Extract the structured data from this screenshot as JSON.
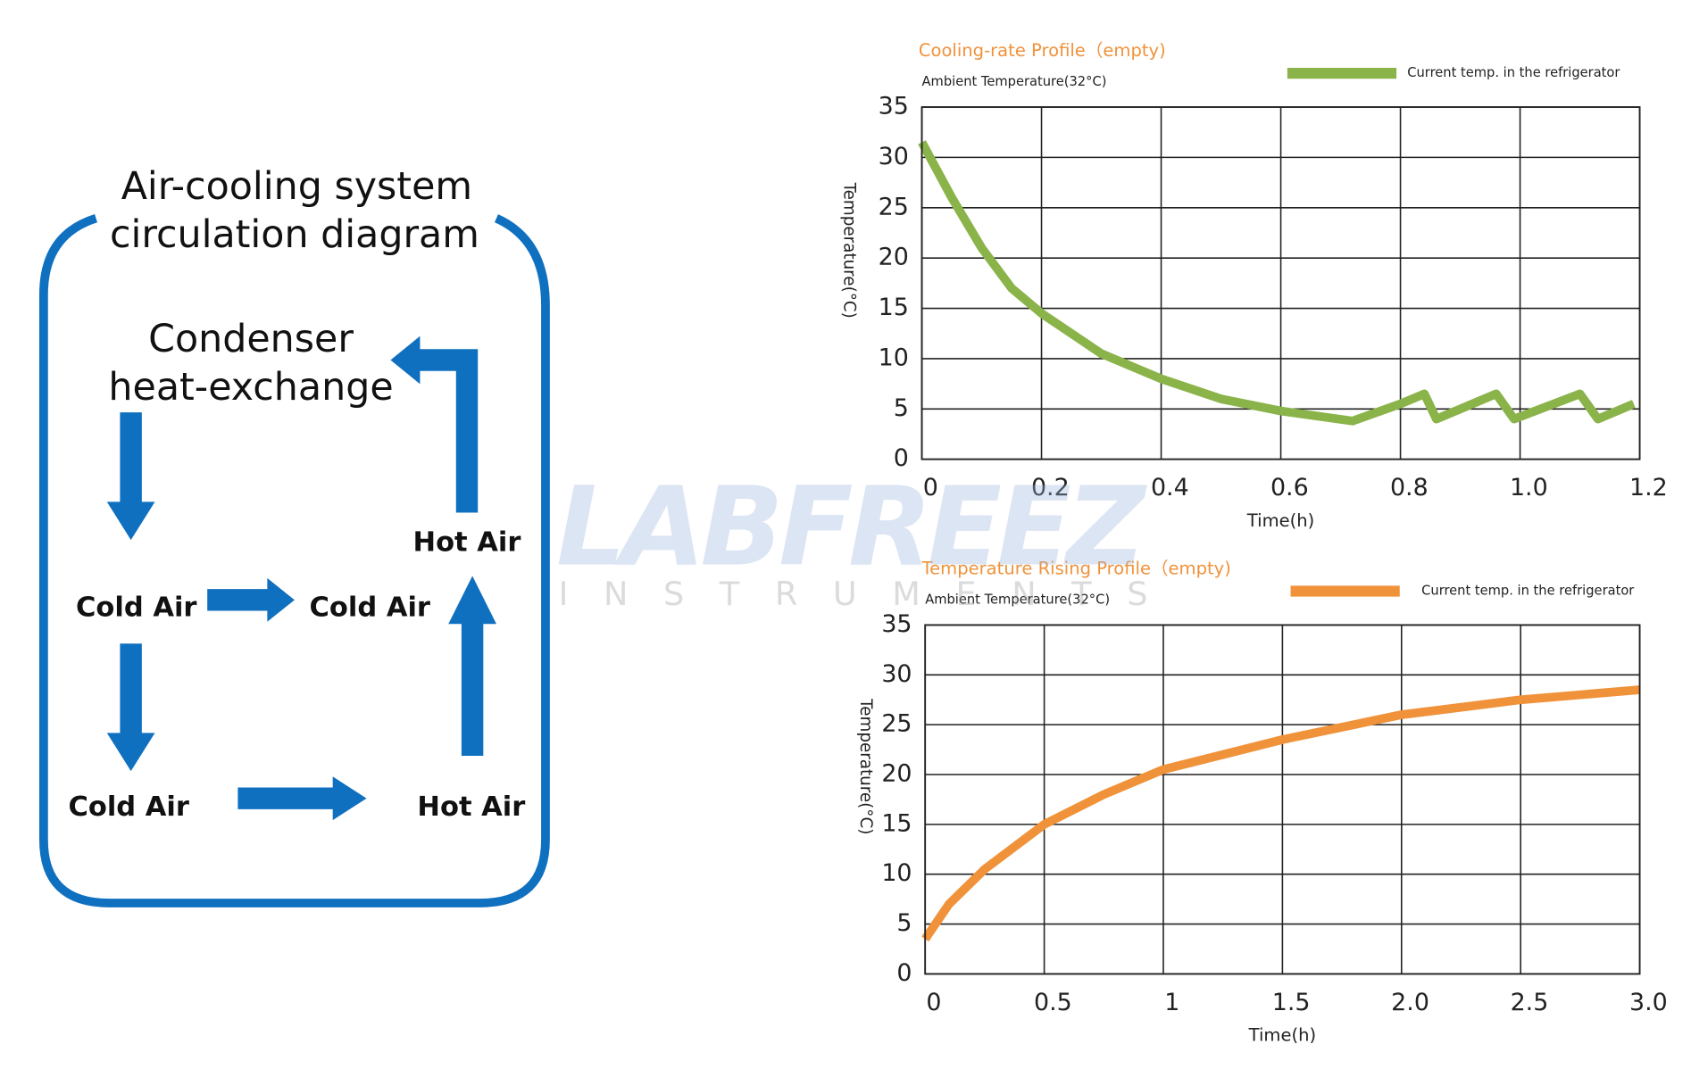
{
  "diagram": {
    "title": [
      "Air-cooling  system",
      "circulation diagram"
    ],
    "condenser": [
      "Condenser",
      "heat-exchange"
    ],
    "labels": [
      "Hot Air",
      "Cold Air",
      "Cold Air",
      "Cold Air",
      "Hot Air"
    ]
  },
  "watermark": {
    "brand": "LABFREEZ",
    "sub": "INSTRUMENTS"
  },
  "chart_data": [
    {
      "type": "line",
      "title": "Cooling-rate Profile（empty)",
      "subtitle": "Ambient Temperature(32°C)",
      "x_label": "Time(h)",
      "y_label": "Temperature(°C)",
      "grid": true,
      "x": [
        0,
        0.05,
        0.1,
        0.15,
        0.2,
        0.3,
        0.4,
        0.5,
        0.6,
        0.72,
        0.8,
        0.84,
        0.86,
        0.96,
        0.99,
        1.1,
        1.13,
        1.19
      ],
      "series": [
        {
          "name": "Current temp. in the refrigerator",
          "color": "#8ab34a",
          "values": [
            31.5,
            26,
            21,
            17,
            14.5,
            10.5,
            8,
            6,
            4.8,
            3.8,
            5.5,
            6.5,
            4,
            6.5,
            4,
            6.5,
            4,
            5.5
          ]
        }
      ],
      "xlim": [
        0,
        1.2
      ],
      "xticks": [
        0,
        0.2,
        0.4,
        0.6,
        0.8,
        {
          "value": 1,
          "label": "1.0"
        },
        1.2
      ],
      "ylim": [
        0,
        35
      ],
      "yticks": [
        0,
        5,
        10,
        15,
        20,
        25,
        30,
        35
      ]
    },
    {
      "type": "line",
      "title": "Temperature Rising Profile（empty)",
      "subtitle": "Ambient Temperature(32°C)",
      "x_label": "Time(h)",
      "y_label": "Temperature(°C)",
      "grid": true,
      "x": [
        0,
        0.1,
        0.25,
        0.5,
        0.75,
        1,
        1.5,
        2,
        2.5,
        3
      ],
      "series": [
        {
          "name": "Current temp. in the refrigerator",
          "color": "#f0923a",
          "values": [
            3.5,
            7,
            10.5,
            15,
            18,
            20.5,
            23.5,
            26,
            27.5,
            28.5
          ]
        }
      ],
      "xlim": [
        0,
        3
      ],
      "xticks": [
        0,
        0.5,
        1,
        1.5,
        {
          "value": 2,
          "label": "2.0"
        },
        2.5,
        {
          "value": 3,
          "label": "3.0"
        }
      ],
      "ylim": [
        0,
        35
      ],
      "yticks": [
        0,
        5,
        10,
        15,
        20,
        25,
        30,
        35
      ]
    }
  ]
}
